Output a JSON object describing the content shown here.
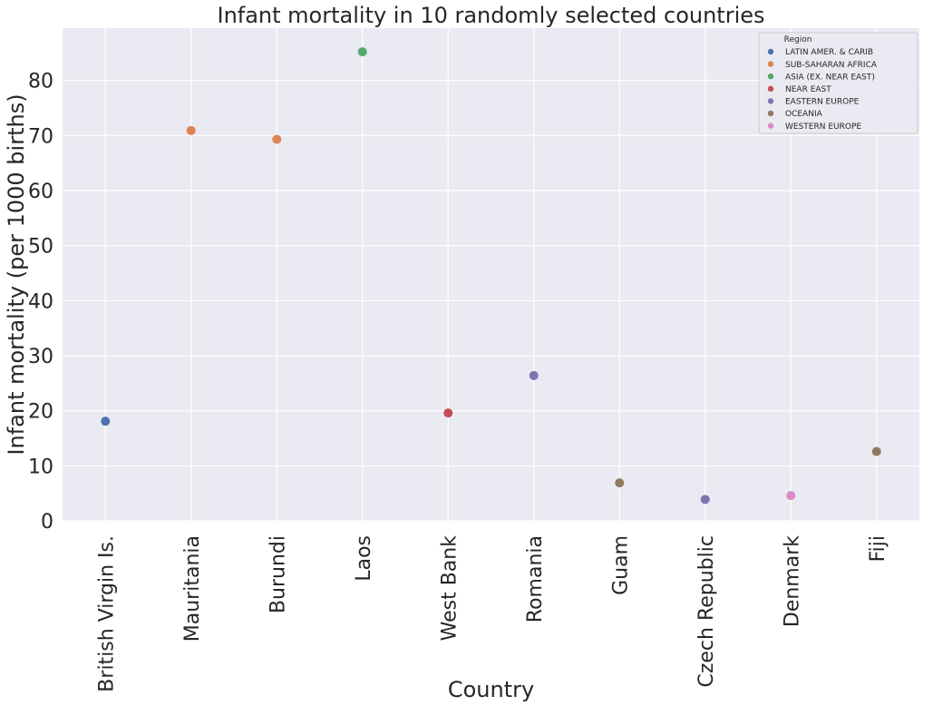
{
  "chart_data": {
    "type": "scatter",
    "title": "Infant mortality in 10 randomly selected countries",
    "xlabel": "Country",
    "ylabel": "Infant mortality (per 1000 births)",
    "categories": [
      "British Virgin Is.",
      "Mauritania",
      "Burundi",
      "Laos",
      "West Bank",
      "Romania",
      "Guam",
      "Czech Republic",
      "Denmark",
      "Fiji"
    ],
    "values": [
      18.1,
      70.9,
      69.3,
      85.2,
      19.6,
      26.4,
      6.9,
      3.9,
      4.6,
      12.6
    ],
    "point_regions": [
      "LATIN AMER. & CARIB",
      "SUB-SAHARAN AFRICA",
      "SUB-SAHARAN AFRICA",
      "ASIA (EX. NEAR EAST)",
      "NEAR EAST",
      "EASTERN EUROPE",
      "OCEANIA",
      "EASTERN EUROPE",
      "WESTERN EUROPE",
      "OCEANIA"
    ],
    "ylim": [
      0,
      89.5
    ],
    "yticks": [
      0,
      10,
      20,
      30,
      40,
      50,
      60,
      70,
      80
    ],
    "grid": true,
    "legend": {
      "title": "Region",
      "placement": "top-right",
      "entries": [
        {
          "label": "LATIN AMER. & CARIB",
          "color": "#4c72b0"
        },
        {
          "label": "SUB-SAHARAN AFRICA",
          "color": "#dd8452"
        },
        {
          "label": "ASIA (EX. NEAR EAST)",
          "color": "#55a868"
        },
        {
          "label": "NEAR EAST",
          "color": "#c44e52"
        },
        {
          "label": "EASTERN EUROPE",
          "color": "#8172b3"
        },
        {
          "label": "OCEANIA",
          "color": "#937860"
        },
        {
          "label": "WESTERN EUROPE",
          "color": "#da8bc3"
        }
      ]
    },
    "background_color": "#eaeaf2"
  }
}
